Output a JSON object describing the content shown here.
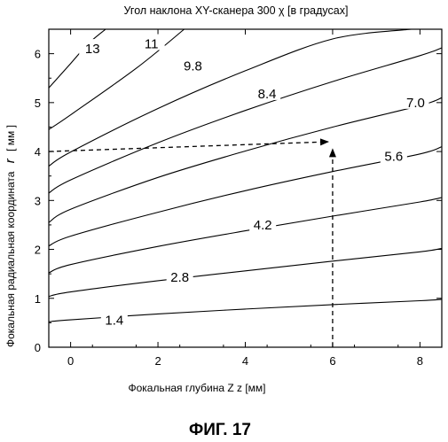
{
  "chart_data": {
    "type": "line",
    "title": "Угол наклона XY-сканера 300 χ [в градусах]",
    "xlabel": "Фокальная глубина Z z [мм]",
    "ylabel_text": "Фокальная радиальная координата",
    "ylabel_symbol": "r",
    "ylabel_unit": "[ мм ]",
    "xlim": [
      -0.5,
      8.5
    ],
    "ylim": [
      0,
      6.5
    ],
    "xticks": [
      0,
      2,
      4,
      6,
      8
    ],
    "yticks": [
      0,
      1,
      2,
      3,
      4,
      5,
      6
    ],
    "grid": false,
    "figure_caption": "ФИГ. 17",
    "series": [
      {
        "label": "1.4",
        "x": [
          -0.5,
          0,
          2,
          4,
          6,
          8,
          8.5
        ],
        "y": [
          0.52,
          0.56,
          0.68,
          0.78,
          0.87,
          0.95,
          0.98
        ],
        "label_at": [
          1.0,
          0.55
        ]
      },
      {
        "label": "2.8",
        "x": [
          -0.5,
          0,
          2,
          4,
          6,
          8,
          8.5
        ],
        "y": [
          1.04,
          1.13,
          1.36,
          1.56,
          1.76,
          1.95,
          2.02
        ],
        "label_at": [
          2.5,
          1.43
        ]
      },
      {
        "label": "4.2",
        "x": [
          -0.5,
          0,
          2,
          4,
          6,
          8,
          8.5
        ],
        "y": [
          1.52,
          1.69,
          2.06,
          2.38,
          2.68,
          2.97,
          3.06
        ],
        "label_at": [
          4.4,
          2.5
        ]
      },
      {
        "label": "5.6",
        "x": [
          -0.5,
          0,
          2,
          4,
          6,
          8,
          8.5
        ],
        "y": [
          2.07,
          2.27,
          2.76,
          3.2,
          3.59,
          3.95,
          4.1
        ],
        "label_at": [
          7.4,
          3.9
        ]
      },
      {
        "label": "7.0",
        "x": [
          -0.5,
          0,
          2,
          4,
          6,
          8,
          8.5
        ],
        "y": [
          2.55,
          2.82,
          3.47,
          4.01,
          4.5,
          4.94,
          5.1
        ],
        "label_at": [
          7.9,
          5.0
        ]
      },
      {
        "label": "8.4",
        "x": [
          -0.5,
          0,
          2,
          4,
          6,
          8,
          8.5
        ],
        "y": [
          3.15,
          3.42,
          4.18,
          4.84,
          5.43,
          5.96,
          6.12
        ],
        "label_at": [
          4.5,
          5.18
        ]
      },
      {
        "label": "9.8",
        "x": [
          -0.5,
          0,
          2,
          4,
          6,
          7.8
        ],
        "y": [
          3.7,
          3.99,
          4.88,
          5.65,
          6.3,
          6.5
        ],
        "label_at": [
          2.8,
          5.75
        ]
      },
      {
        "label": "11",
        "x": [
          -0.5,
          0,
          1.5,
          2.6
        ],
        "y": [
          4.45,
          4.75,
          5.7,
          6.5
        ],
        "label_at": [
          1.85,
          6.2
        ]
      },
      {
        "label": "13",
        "x": [
          -0.5,
          0,
          0.4,
          0.8
        ],
        "y": [
          5.3,
          5.8,
          6.2,
          6.5
        ],
        "label_at": [
          0.5,
          6.1
        ]
      }
    ],
    "annotation_arrows": [
      {
        "from": [
          -0.5,
          4.0
        ],
        "to": [
          5.9,
          4.2
        ],
        "style": "dashed"
      },
      {
        "from": [
          6.0,
          0.0
        ],
        "to": [
          6.0,
          4.05
        ],
        "style": "dashed"
      }
    ]
  }
}
